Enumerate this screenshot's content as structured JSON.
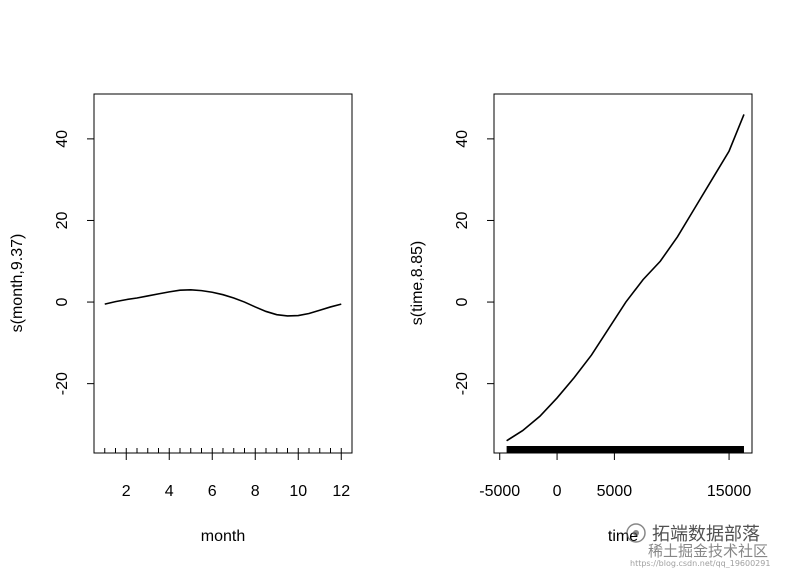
{
  "chart_data": [
    {
      "type": "line",
      "title": "",
      "xlabel": "month",
      "ylabel": "s(month,9.37)",
      "xlim": [
        0.5,
        12.5
      ],
      "ylim": [
        -37,
        51
      ],
      "xticks": [
        2,
        4,
        6,
        8,
        10,
        12
      ],
      "yticks": [
        -20,
        0,
        20,
        40
      ],
      "grid": false,
      "rug": [
        1,
        1.5,
        2,
        2.5,
        3,
        3.5,
        4,
        4.5,
        5,
        5.5,
        6,
        6.5,
        7,
        7.5,
        8,
        8.5,
        9,
        9.5,
        10,
        10.5,
        11,
        11.5,
        12
      ],
      "series": [
        {
          "x": [
            1,
            1.5,
            2,
            2.5,
            3,
            3.5,
            4,
            4.5,
            5,
            5.5,
            6,
            6.5,
            7,
            7.5,
            8,
            8.5,
            9,
            9.5,
            10,
            10.5,
            11,
            11.5,
            12
          ],
          "values": [
            -0.5,
            0.1,
            0.6,
            1.0,
            1.5,
            2.0,
            2.5,
            2.9,
            3.0,
            2.8,
            2.4,
            1.8,
            1.0,
            0.0,
            -1.2,
            -2.3,
            -3.1,
            -3.4,
            -3.3,
            -2.8,
            -2.0,
            -1.2,
            -0.5
          ]
        }
      ]
    },
    {
      "type": "line",
      "title": "",
      "xlabel": "time",
      "ylabel": "s(time,8.85)",
      "xlim": [
        -5500,
        17000
      ],
      "ylim": [
        -37,
        51
      ],
      "xticks": [
        -5000,
        0,
        5000,
        15000
      ],
      "yticks": [
        -20,
        0,
        20,
        40
      ],
      "grid": false,
      "rug_range": [
        -4400,
        16300
      ],
      "series": [
        {
          "x": [
            -4400,
            -3000,
            -1500,
            0,
            1500,
            3000,
            4500,
            6000,
            7500,
            9000,
            10500,
            12000,
            13500,
            15000,
            16300
          ],
          "values": [
            -34,
            -31.5,
            -28,
            -23.5,
            -18.5,
            -13,
            -6.5,
            0,
            5.5,
            10,
            16,
            23,
            30,
            37,
            46
          ]
        }
      ]
    }
  ],
  "watermark": {
    "line1": "拓端数据部落",
    "line2": "稀土掘金技术社区",
    "url": "https://blog.csdn.net/qq_19600291"
  }
}
